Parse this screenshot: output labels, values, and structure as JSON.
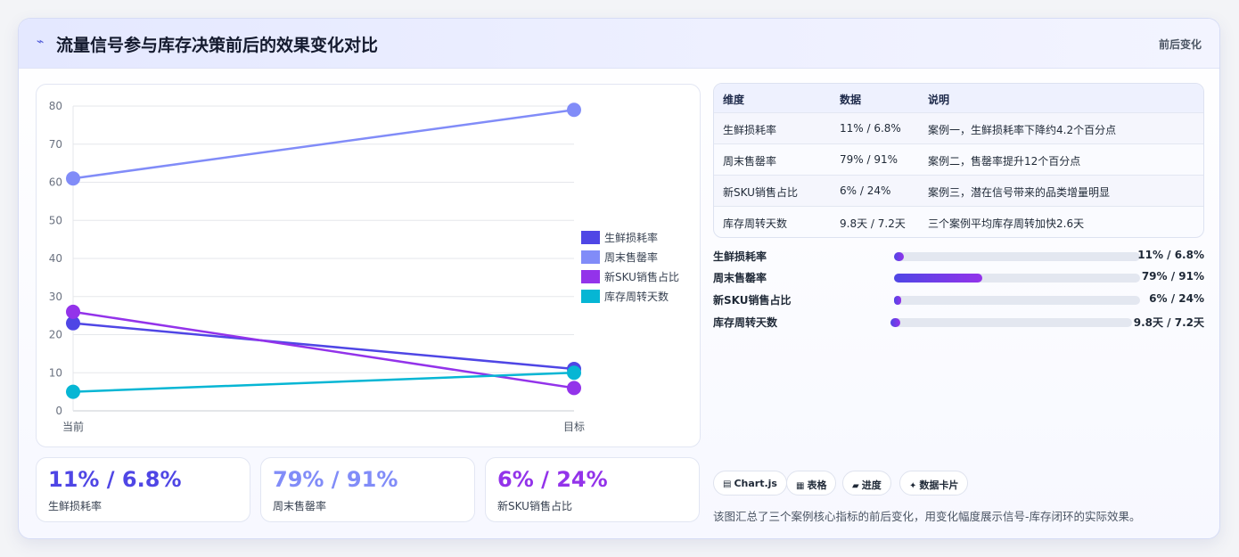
{
  "header": {
    "title_icon": "pulse-icon",
    "title": "流量信号参与库存决策前后的效果变化对比",
    "tag": "前后变化"
  },
  "chart_data": {
    "type": "line",
    "x": [
      "当前",
      "目标"
    ],
    "ylim": [
      0,
      80
    ],
    "yticks": [
      "0",
      "10",
      "20",
      "30",
      "40",
      "50",
      "60",
      "70",
      "80"
    ],
    "grid": true,
    "legend_position": "right",
    "series": [
      {
        "name": "生鲜损耗率",
        "values": [
          23,
          11
        ],
        "color": "#4f46e5"
      },
      {
        "name": "周末售罄率",
        "values": [
          61,
          79
        ],
        "color": "#818cf8"
      },
      {
        "name": "新SKU销售占比",
        "values": [
          26,
          6
        ],
        "color": "#9333ea"
      },
      {
        "name": "库存周转天数",
        "values": [
          5,
          10
        ],
        "color": "#06b6d4"
      }
    ]
  },
  "kpis": [
    {
      "value": "11% / 6.8%",
      "label": "生鲜损耗率",
      "color": "#4f46e5"
    },
    {
      "value": "79% / 91%",
      "label": "周末售罄率",
      "color": "#818cf8"
    },
    {
      "value": "6% / 24%",
      "label": "新SKU销售占比",
      "color": "#9333ea"
    }
  ],
  "table": {
    "headers": [
      "维度",
      "数据",
      "说明"
    ],
    "rows": [
      [
        "生鲜损耗率",
        "11% / 6.8%",
        "案例一，生鲜损耗率下降约4.2个百分点"
      ],
      [
        "周末售罄率",
        "79% / 91%",
        "案例二，售罄率提升12个百分点"
      ],
      [
        "新SKU销售占比",
        "6% / 24%",
        "案例三，潜在信号带来的品类增量明显"
      ],
      [
        "库存周转天数",
        "9.8天 / 7.2天",
        "三个案例平均库存周转加快2.6天"
      ]
    ]
  },
  "progress": [
    {
      "label": "生鲜损耗率",
      "value_text": "11% / 6.8%",
      "fraction": 0.04
    },
    {
      "label": "周末售罄率",
      "value_text": "79% / 91%",
      "fraction": 0.36
    },
    {
      "label": "新SKU销售占比",
      "value_text": "6% / 24%",
      "fraction": 0.03
    },
    {
      "label": "库存周转天数",
      "value_text": "9.8天 / 7.2天",
      "fraction": 0.04
    }
  ],
  "chips": [
    {
      "icon": "chart-icon",
      "label": "Chart.js"
    },
    {
      "icon": "table-icon",
      "label": "表格"
    },
    {
      "icon": "progress-icon",
      "label": "进度"
    },
    {
      "icon": "sparkle-icon",
      "label": "数据卡片"
    }
  ],
  "description": "该图汇总了三个案例核心指标的前后变化，用变化幅度展示信号-库存闭环的实际效果。"
}
